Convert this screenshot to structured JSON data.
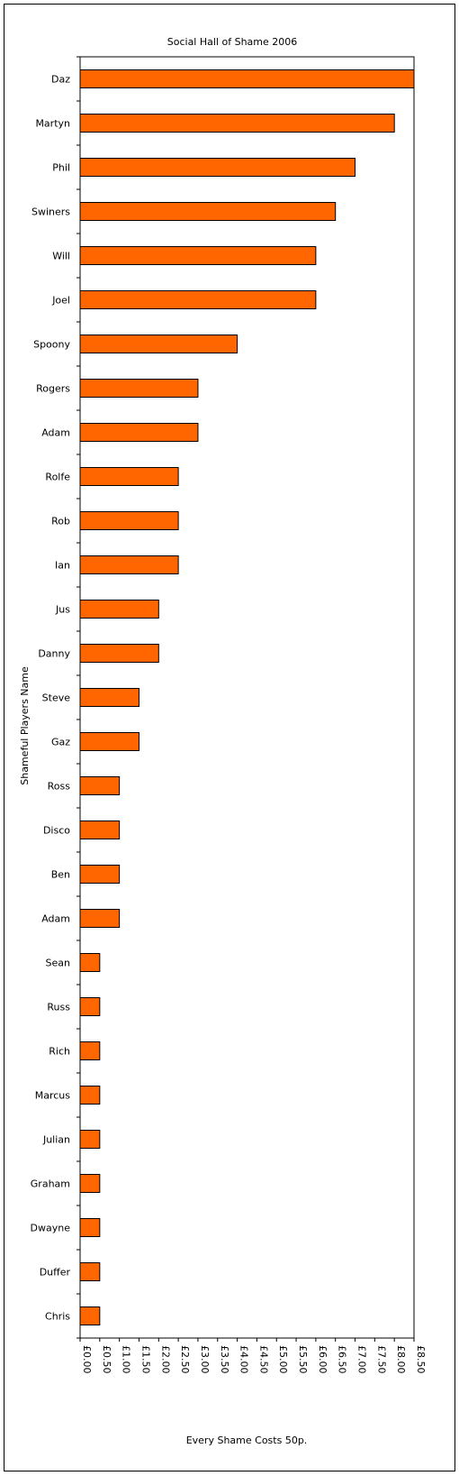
{
  "chart_data": {
    "type": "bar",
    "orientation": "horizontal",
    "title": "Social Hall of Shame 2006",
    "xlabel": "Every Shame Costs 50p.",
    "ylabel": "Shameful Players Name",
    "xlim": [
      0,
      8.5
    ],
    "x_ticks": [
      "£0.00",
      "£0.50",
      "£1.00",
      "£1.50",
      "£2.00",
      "£2.50",
      "£3.00",
      "£3.50",
      "£4.00",
      "£4.50",
      "£5.00",
      "£5.50",
      "£6.00",
      "£6.50",
      "£7.00",
      "£7.50",
      "£8.00",
      "£8.50"
    ],
    "categories": [
      "Daz",
      "Martyn",
      "Phil",
      "Swiners",
      "Will",
      "Joel",
      "Spoony",
      "Rogers",
      "Adam",
      "Rolfe",
      "Rob",
      "Ian",
      "Jus",
      "Danny",
      "Steve",
      "Gaz",
      "Ross",
      "Disco",
      "Ben",
      "Adam",
      "Sean",
      "Russ",
      "Rich",
      "Marcus",
      "Julian",
      "Graham",
      "Dwayne",
      "Duffer",
      "Chris"
    ],
    "values": [
      8.5,
      8.0,
      7.0,
      6.5,
      6.0,
      6.0,
      4.0,
      3.0,
      3.0,
      2.5,
      2.5,
      2.5,
      2.0,
      2.0,
      1.5,
      1.5,
      1.0,
      1.0,
      1.0,
      1.0,
      0.5,
      0.5,
      0.5,
      0.5,
      0.5,
      0.5,
      0.5,
      0.5,
      0.5
    ],
    "bar_color": "#ff6600",
    "bar_edge_color": "#000000",
    "grid": false,
    "legend": "none"
  }
}
